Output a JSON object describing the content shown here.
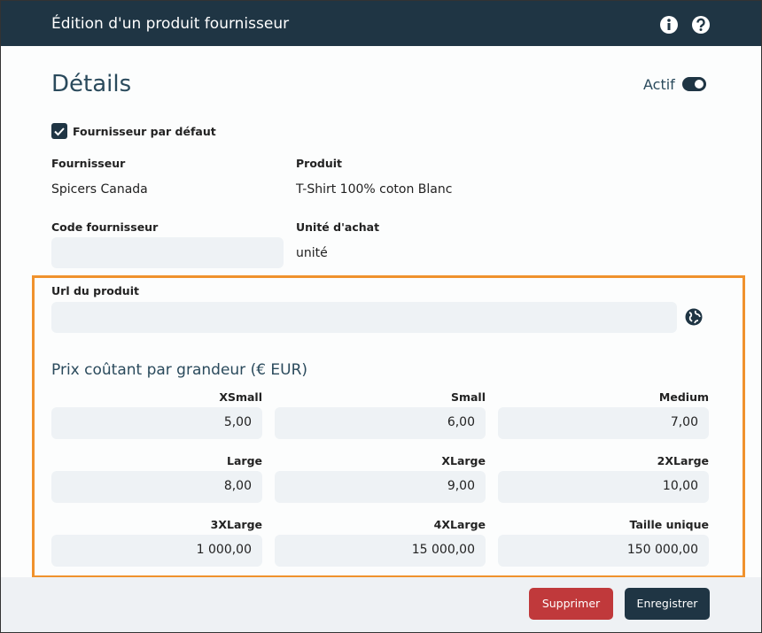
{
  "header": {
    "title": "Édition d'un produit fournisseur"
  },
  "details": {
    "title": "Détails",
    "active_label": "Actif",
    "default_supplier": "Fournisseur par défaut"
  },
  "fields": [
    {
      "label": "Fournisseur",
      "value": "Spicers Canada"
    },
    {
      "label": "Produit",
      "value": "T-Shirt 100% coton Blanc"
    },
    {
      "label": "Code fournisseur"
    },
    {
      "label": "Unité d'achat",
      "value": "unité"
    },
    {
      "label": "Url du produit"
    }
  ],
  "prices": {
    "title": "Prix coûtant par grandeur (€ EUR)",
    "sizes": [
      {
        "label": "XSmall",
        "value": "5,00"
      },
      {
        "label": "Small",
        "value": "6,00"
      },
      {
        "label": "Medium",
        "value": "7,00"
      },
      {
        "label": "Large",
        "value": "8,00"
      },
      {
        "label": "XLarge",
        "value": "9,00"
      },
      {
        "label": "2XLarge",
        "value": "10,00"
      },
      {
        "label": "3XLarge",
        "value": "1 000,00"
      },
      {
        "label": "4XLarge",
        "value": "15 000,00"
      },
      {
        "label": "Taille unique",
        "value": "150 000,00"
      }
    ]
  },
  "buttons": {
    "delete": "Supprimer",
    "save": "Enregistrer"
  }
}
